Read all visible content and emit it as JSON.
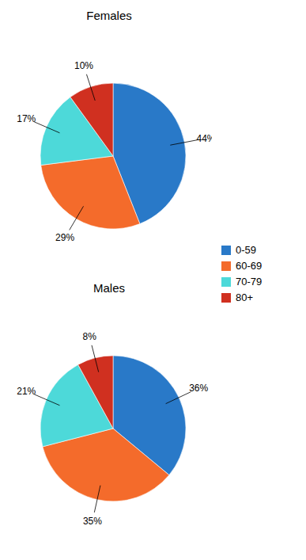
{
  "chart_data": [
    {
      "type": "pie",
      "title": "Females",
      "categories": [
        "0-59",
        "60-69",
        "70-79",
        "80+"
      ],
      "values": [
        44,
        29,
        17,
        10
      ],
      "value_labels": [
        "44%",
        "29%",
        "17%",
        "10%"
      ],
      "colors": [
        "#2979C8",
        "#F46B2B",
        "#4DD9D9",
        "#D03020"
      ],
      "data_labels": true,
      "legend": "right"
    },
    {
      "type": "pie",
      "title": "Males",
      "categories": [
        "0-59",
        "60-69",
        "70-79",
        "80+"
      ],
      "values": [
        36,
        35,
        21,
        8
      ],
      "value_labels": [
        "36%",
        "35%",
        "21%",
        "8%"
      ],
      "colors": [
        "#2979C8",
        "#F46B2B",
        "#4DD9D9",
        "#D03020"
      ],
      "data_labels": true
    }
  ]
}
